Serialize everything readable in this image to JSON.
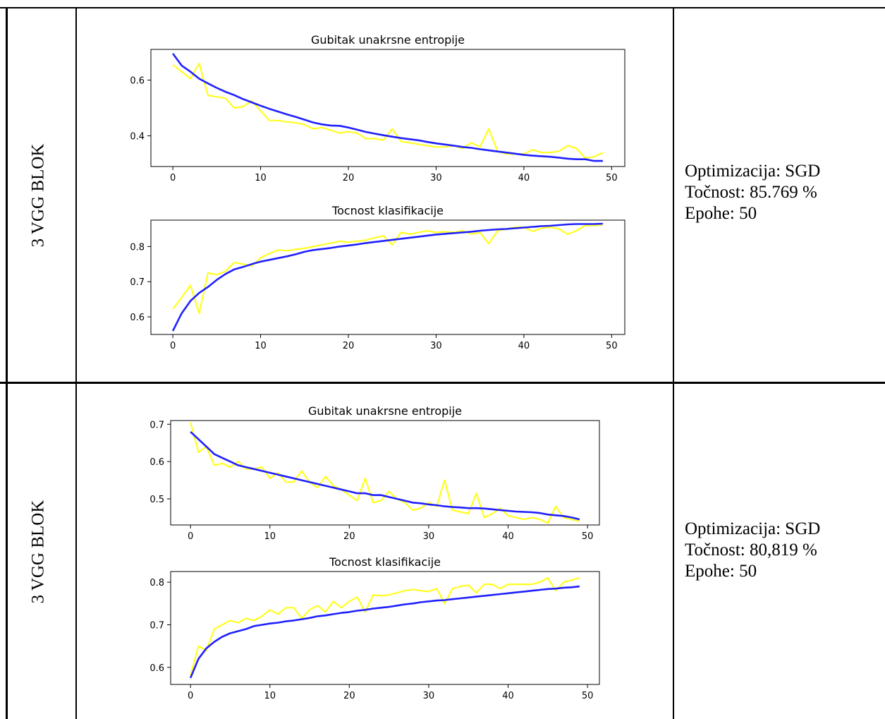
{
  "rows": [
    {
      "label": "3 VGG BLOK",
      "info": {
        "optimization": "Optimizacija: SGD",
        "accuracy": "Točnost: 85.769 %",
        "epochs": "Epohe: 50"
      }
    },
    {
      "label": "3 VGG BLOK",
      "info": {
        "optimization": "Optimizacija: SGD",
        "accuracy": "Točnost: 80,819 %",
        "epochs": "Epohe: 50"
      }
    }
  ],
  "colors": {
    "train": "#2020ff",
    "validation": "#ffff20",
    "grid_line": "#000000"
  },
  "chart_data": [
    {
      "type": "line",
      "title": "Gubitak unakrsne entropije",
      "xlim": [
        -2.5,
        51.5
      ],
      "ylim": [
        0.29,
        0.71
      ],
      "xticks": [
        0,
        10,
        20,
        30,
        40,
        50
      ],
      "yticks": [
        0.4,
        0.6
      ],
      "ytick_labels": [
        "0.4",
        "0.6"
      ],
      "series": [
        {
          "role": "train",
          "values": [
            0.695,
            0.652,
            0.63,
            0.605,
            0.588,
            0.572,
            0.558,
            0.546,
            0.532,
            0.52,
            0.508,
            0.497,
            0.487,
            0.477,
            0.468,
            0.458,
            0.448,
            0.441,
            0.437,
            0.436,
            0.43,
            0.422,
            0.414,
            0.408,
            0.402,
            0.397,
            0.392,
            0.388,
            0.384,
            0.378,
            0.373,
            0.369,
            0.365,
            0.36,
            0.357,
            0.352,
            0.348,
            0.344,
            0.34,
            0.336,
            0.332,
            0.329,
            0.327,
            0.325,
            0.322,
            0.318,
            0.316,
            0.316,
            0.31,
            0.31
          ]
        },
        {
          "role": "validation",
          "values": [
            0.655,
            0.63,
            0.605,
            0.66,
            0.545,
            0.54,
            0.535,
            0.5,
            0.505,
            0.525,
            0.49,
            0.455,
            0.455,
            0.45,
            0.447,
            0.44,
            0.425,
            0.43,
            0.42,
            0.41,
            0.415,
            0.41,
            0.39,
            0.39,
            0.385,
            0.425,
            0.38,
            0.375,
            0.37,
            0.365,
            0.36,
            0.36,
            0.365,
            0.355,
            0.375,
            0.36,
            0.425,
            0.345,
            0.335,
            0.335,
            0.335,
            0.35,
            0.34,
            0.34,
            0.345,
            0.365,
            0.355,
            0.32,
            0.325,
            0.34
          ]
        }
      ]
    },
    {
      "type": "line",
      "title": "Tocnost klasifikacije",
      "xlim": [
        -2.5,
        51.5
      ],
      "ylim": [
        0.55,
        0.875
      ],
      "xticks": [
        0,
        10,
        20,
        30,
        40,
        50
      ],
      "yticks": [
        0.6,
        0.7,
        0.8
      ],
      "ytick_labels": [
        "0.6",
        "0.7",
        "0.8"
      ],
      "series": [
        {
          "role": "train",
          "values": [
            0.56,
            0.61,
            0.645,
            0.668,
            0.685,
            0.705,
            0.722,
            0.735,
            0.742,
            0.75,
            0.757,
            0.762,
            0.767,
            0.772,
            0.778,
            0.785,
            0.79,
            0.793,
            0.796,
            0.8,
            0.803,
            0.806,
            0.81,
            0.813,
            0.816,
            0.819,
            0.822,
            0.825,
            0.828,
            0.831,
            0.834,
            0.836,
            0.838,
            0.84,
            0.842,
            0.845,
            0.847,
            0.849,
            0.85,
            0.852,
            0.854,
            0.856,
            0.858,
            0.859,
            0.861,
            0.863,
            0.864,
            0.864,
            0.864,
            0.865
          ]
        },
        {
          "role": "validation",
          "values": [
            0.622,
            0.655,
            0.69,
            0.61,
            0.725,
            0.72,
            0.73,
            0.755,
            0.75,
            0.745,
            0.768,
            0.78,
            0.79,
            0.788,
            0.792,
            0.795,
            0.8,
            0.805,
            0.81,
            0.815,
            0.812,
            0.815,
            0.818,
            0.825,
            0.83,
            0.805,
            0.84,
            0.835,
            0.84,
            0.845,
            0.84,
            0.842,
            0.84,
            0.845,
            0.835,
            0.84,
            0.808,
            0.845,
            0.85,
            0.855,
            0.855,
            0.843,
            0.852,
            0.855,
            0.85,
            0.835,
            0.845,
            0.86,
            0.86,
            0.862
          ]
        }
      ]
    },
    {
      "type": "line",
      "title": "Gubitak unakrsne entropije",
      "xlim": [
        -2.5,
        51.5
      ],
      "ylim": [
        0.43,
        0.71
      ],
      "xticks": [
        0,
        10,
        20,
        30,
        40,
        50
      ],
      "yticks": [
        0.5,
        0.6,
        0.7
      ],
      "ytick_labels": [
        "0.5",
        "0.6",
        "0.7"
      ],
      "series": [
        {
          "role": "train",
          "values": [
            0.68,
            0.66,
            0.64,
            0.62,
            0.61,
            0.6,
            0.59,
            0.585,
            0.58,
            0.575,
            0.57,
            0.565,
            0.56,
            0.555,
            0.55,
            0.545,
            0.54,
            0.535,
            0.53,
            0.525,
            0.52,
            0.515,
            0.515,
            0.51,
            0.51,
            0.505,
            0.5,
            0.495,
            0.49,
            0.488,
            0.485,
            0.483,
            0.48,
            0.478,
            0.477,
            0.475,
            0.475,
            0.474,
            0.472,
            0.47,
            0.468,
            0.466,
            0.465,
            0.464,
            0.462,
            0.458,
            0.456,
            0.454,
            0.45,
            0.445
          ]
        },
        {
          "role": "validation",
          "values": [
            0.705,
            0.625,
            0.64,
            0.59,
            0.595,
            0.585,
            0.6,
            0.58,
            0.58,
            0.585,
            0.555,
            0.57,
            0.545,
            0.545,
            0.575,
            0.545,
            0.53,
            0.56,
            0.535,
            0.525,
            0.51,
            0.495,
            0.555,
            0.49,
            0.495,
            0.52,
            0.5,
            0.49,
            0.47,
            0.475,
            0.49,
            0.48,
            0.55,
            0.47,
            0.465,
            0.46,
            0.515,
            0.45,
            0.46,
            0.475,
            0.455,
            0.45,
            0.445,
            0.45,
            0.445,
            0.435,
            0.48,
            0.45,
            0.445,
            0.44
          ]
        }
      ]
    },
    {
      "type": "line",
      "title": "Tocnost klasifikacije",
      "xlim": [
        -2.5,
        51.5
      ],
      "ylim": [
        0.56,
        0.825
      ],
      "xticks": [
        0,
        10,
        20,
        30,
        40,
        50
      ],
      "yticks": [
        0.6,
        0.7,
        0.8
      ],
      "ytick_labels": [
        "0.6",
        "0.7",
        "0.8"
      ],
      "series": [
        {
          "role": "train",
          "values": [
            0.575,
            0.62,
            0.645,
            0.66,
            0.672,
            0.68,
            0.685,
            0.69,
            0.697,
            0.7,
            0.703,
            0.705,
            0.708,
            0.71,
            0.713,
            0.716,
            0.72,
            0.722,
            0.725,
            0.728,
            0.73,
            0.733,
            0.735,
            0.738,
            0.74,
            0.742,
            0.745,
            0.748,
            0.75,
            0.753,
            0.755,
            0.757,
            0.758,
            0.76,
            0.762,
            0.764,
            0.766,
            0.768,
            0.77,
            0.772,
            0.774,
            0.776,
            0.778,
            0.78,
            0.782,
            0.784,
            0.785,
            0.787,
            0.788,
            0.79
          ]
        },
        {
          "role": "validation",
          "values": [
            0.58,
            0.65,
            0.64,
            0.69,
            0.7,
            0.71,
            0.705,
            0.715,
            0.71,
            0.72,
            0.735,
            0.725,
            0.74,
            0.74,
            0.715,
            0.735,
            0.745,
            0.73,
            0.755,
            0.74,
            0.755,
            0.765,
            0.73,
            0.77,
            0.768,
            0.77,
            0.775,
            0.78,
            0.783,
            0.78,
            0.778,
            0.785,
            0.75,
            0.785,
            0.79,
            0.793,
            0.775,
            0.795,
            0.795,
            0.785,
            0.795,
            0.795,
            0.795,
            0.795,
            0.8,
            0.81,
            0.78,
            0.8,
            0.805,
            0.81
          ]
        }
      ]
    }
  ]
}
